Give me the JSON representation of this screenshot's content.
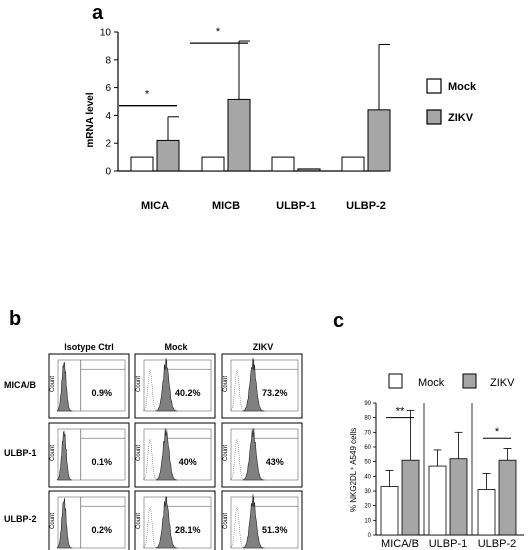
{
  "colors": {
    "mock": "#ffffff",
    "zikv": "#a6a6a6",
    "stroke": "#000000",
    "histo": "#808080"
  },
  "chart_data": [
    {
      "id": "a",
      "panel_label": "a",
      "type": "bar",
      "ylabel": "mRNA level",
      "ylim": [
        0,
        10
      ],
      "yticks": [
        0,
        2,
        4,
        6,
        8,
        10
      ],
      "categories": [
        "MICA",
        "MICB",
        "ULBP-1",
        "ULBP-2"
      ],
      "legend": [
        "Mock",
        "ZIKV"
      ],
      "legend_position": "right",
      "series": [
        {
          "name": "Mock",
          "values": [
            1,
            1,
            1,
            1
          ],
          "errors": [
            0,
            0,
            0,
            0
          ]
        },
        {
          "name": "ZIKV",
          "values": [
            2.2,
            5.15,
            0.15,
            4.4
          ],
          "errors": [
            1.7,
            4.2,
            0,
            4.7
          ]
        }
      ],
      "significance": [
        {
          "category": 0,
          "label": "*",
          "y": 4.7
        },
        {
          "category": 1,
          "label": "*",
          "y": 9.2
        }
      ]
    },
    {
      "id": "b",
      "panel_label": "b",
      "type": "histogram-grid",
      "columns": [
        "Isotype Ctrl",
        "Mock",
        "ZIKV"
      ],
      "rows": [
        {
          "label": "MICA/B",
          "values": [
            "0.9%",
            "40.2%",
            "73.2%"
          ]
        },
        {
          "label": "ULBP-1",
          "values": [
            "0.1%",
            "40%",
            "43%"
          ]
        },
        {
          "label": "ULBP-2",
          "values": [
            "0.2%",
            "28.1%",
            "51.3%"
          ]
        }
      ],
      "axis_tick_text": "Count"
    },
    {
      "id": "c",
      "panel_label": "c",
      "type": "bar",
      "ylabel": "% NKG2DL⁺ A549 cells",
      "ylim": [
        0,
        90
      ],
      "yticks": [
        0,
        10,
        20,
        30,
        40,
        50,
        60,
        70,
        80,
        90
      ],
      "categories": [
        "MICA/B",
        "ULBP-1",
        "ULBP-2"
      ],
      "legend": [
        "Mock",
        "ZIKV"
      ],
      "legend_position": "top",
      "series": [
        {
          "name": "Mock",
          "values": [
            33,
            47,
            31
          ],
          "errors": [
            11,
            11,
            11
          ]
        },
        {
          "name": "ZIKV",
          "values": [
            51,
            52,
            51
          ],
          "errors": [
            34,
            18,
            8
          ]
        }
      ],
      "significance": [
        {
          "category": 0,
          "label": "**",
          "y": 80
        },
        {
          "category": 2,
          "label": "*",
          "y": 66
        }
      ]
    }
  ]
}
